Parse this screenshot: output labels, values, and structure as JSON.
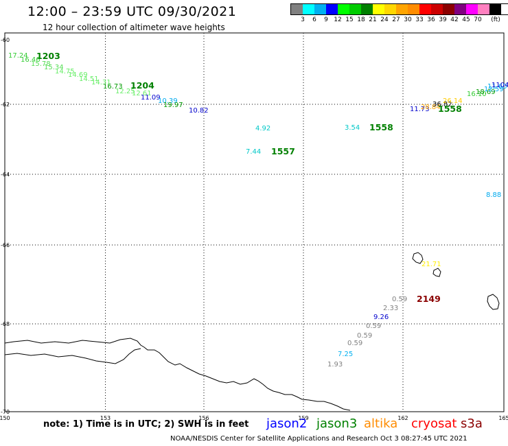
{
  "title": "12:00 – 23:59 UTC 09/30/2021",
  "subtitle": "12 hour collection of altimeter wave heights",
  "legend": {
    "unit": "(ft)",
    "colors": [
      "#808080",
      "#00ffff",
      "#00b0f0",
      "#0000ff",
      "#00ff00",
      "#00cc00",
      "#008000",
      "#ffff00",
      "#ffd700",
      "#ffa500",
      "#ff8c00",
      "#ff0000",
      "#cc0000",
      "#8b0000",
      "#800080",
      "#ff00ff",
      "#ff80c0",
      "#000000"
    ],
    "values": [
      "3",
      "6",
      "9",
      "12",
      "15",
      "18",
      "21",
      "24",
      "27",
      "30",
      "33",
      "36",
      "39",
      "42",
      "45",
      "70"
    ]
  },
  "axes": {
    "lon_labels": [
      "150",
      "153",
      "156",
      "159",
      "162",
      "165"
    ],
    "lat_labels": [
      "-60",
      "-62",
      "-64",
      "-66",
      "-68",
      "-70"
    ]
  },
  "observations": [
    {
      "text": "17.24",
      "color": "#33cc33"
    },
    {
      "text": "1203",
      "color": "#008000",
      "bold": true
    },
    {
      "text": "16.46",
      "color": "#33cc33"
    },
    {
      "text": "15.78",
      "color": "#55dd55"
    },
    {
      "text": "15.34",
      "color": "#55dd55"
    },
    {
      "text": "14.75",
      "color": "#66ee66"
    },
    {
      "text": "14.69",
      "color": "#66ee66"
    },
    {
      "text": "14.51",
      "color": "#66ee66"
    },
    {
      "text": "14.31",
      "color": "#66ee66"
    },
    {
      "text": "16.73",
      "color": "#009900"
    },
    {
      "text": "1204",
      "color": "#008000",
      "bold": true
    },
    {
      "text": "12.25",
      "color": "#66ee66"
    },
    {
      "text": "12.61",
      "color": "#66ee66"
    },
    {
      "text": "11.09",
      "color": "#0000cc"
    },
    {
      "text": "10.39",
      "color": "#00aaee"
    },
    {
      "text": "19.97",
      "color": "#009900"
    },
    {
      "text": "10.82",
      "color": "#0000cc"
    },
    {
      "text": "4.92",
      "color": "#00c8c8"
    },
    {
      "text": "3.54",
      "color": "#00c8c8"
    },
    {
      "text": "1558",
      "color": "#008000",
      "bold": true
    },
    {
      "text": "7.44",
      "color": "#00c8c8"
    },
    {
      "text": "1557",
      "color": "#008000",
      "bold": true
    },
    {
      "text": "11.73",
      "color": "#0000cc"
    },
    {
      "text": "28.84",
      "color": "#ffa500"
    },
    {
      "text": "36.82",
      "color": "#000000"
    },
    {
      "text": "26.14",
      "color": "#ffcc00"
    },
    {
      "text": "16.10",
      "color": "#33cc33"
    },
    {
      "text": "18.69",
      "color": "#009900"
    },
    {
      "text": "12.59",
      "color": "#00aaee"
    },
    {
      "text": "11.60",
      "color": "#00aaee"
    },
    {
      "text": "1104",
      "color": "#0000cc"
    },
    {
      "text": "1558",
      "color": "#008000",
      "bold": true
    },
    {
      "text": "8.88",
      "color": "#00aaee"
    },
    {
      "text": "21.71",
      "color": "#ffee00"
    },
    {
      "text": "0.59",
      "color": "#808080"
    },
    {
      "text": "2149",
      "color": "#8b0000",
      "bold": true
    },
    {
      "text": "2.33",
      "color": "#808080"
    },
    {
      "text": "9.26",
      "color": "#0000cc"
    },
    {
      "text": "0.59",
      "color": "#808080"
    },
    {
      "text": "0.59",
      "color": "#808080"
    },
    {
      "text": "0.59",
      "color": "#808080"
    },
    {
      "text": "7.25",
      "color": "#00b0f0"
    },
    {
      "text": "1.93",
      "color": "#808080"
    }
  ],
  "note": "note: 1) Time is in UTC; 2) SWH is in feet",
  "satellites": [
    {
      "name": "jason2",
      "color": "#0000ff"
    },
    {
      "name": "jason3",
      "color": "#008000"
    },
    {
      "name": "altika",
      "color": "#ff8c00"
    },
    {
      "name": "cryosat",
      "color": "#ff0000"
    },
    {
      "name": "s3a",
      "color": "#8b0000"
    }
  ],
  "footer": "NOAA/NESDIS Center for Satellite Applications and Research    Oct  3 08:27:45 UTC 2021"
}
